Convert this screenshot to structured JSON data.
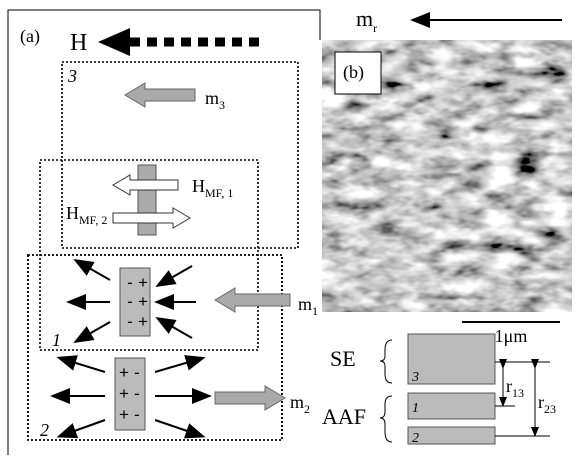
{
  "panel_a": {
    "label": "(a)",
    "field": "H",
    "layers": [
      {
        "number": "3",
        "moment": {
          "base": "m",
          "sub": "3"
        }
      },
      {
        "number": "1",
        "moment": {
          "base": "m",
          "sub": "1"
        },
        "charges": [
          [
            "-",
            "+"
          ],
          [
            "-",
            "+"
          ],
          [
            "-",
            "+"
          ]
        ]
      },
      {
        "number": "2",
        "moment": {
          "base": "m",
          "sub": "2"
        },
        "charges": [
          [
            "+",
            "-"
          ],
          [
            "+",
            "-"
          ],
          [
            "+",
            "-"
          ]
        ]
      }
    ],
    "fields": [
      {
        "base": "H",
        "sub": "MF, 1"
      },
      {
        "base": "H",
        "sub": "MF, 2"
      }
    ]
  },
  "panel_b": {
    "label": "(b)",
    "moment": {
      "base": "m",
      "sub": "r"
    },
    "scale_bar": "1μm"
  },
  "stack": {
    "groups": [
      "SE",
      "AAF"
    ],
    "layers": [
      "3",
      "1",
      "2"
    ],
    "distances": [
      {
        "base": "r",
        "sub": "13"
      },
      {
        "base": "r",
        "sub": "23"
      }
    ]
  }
}
